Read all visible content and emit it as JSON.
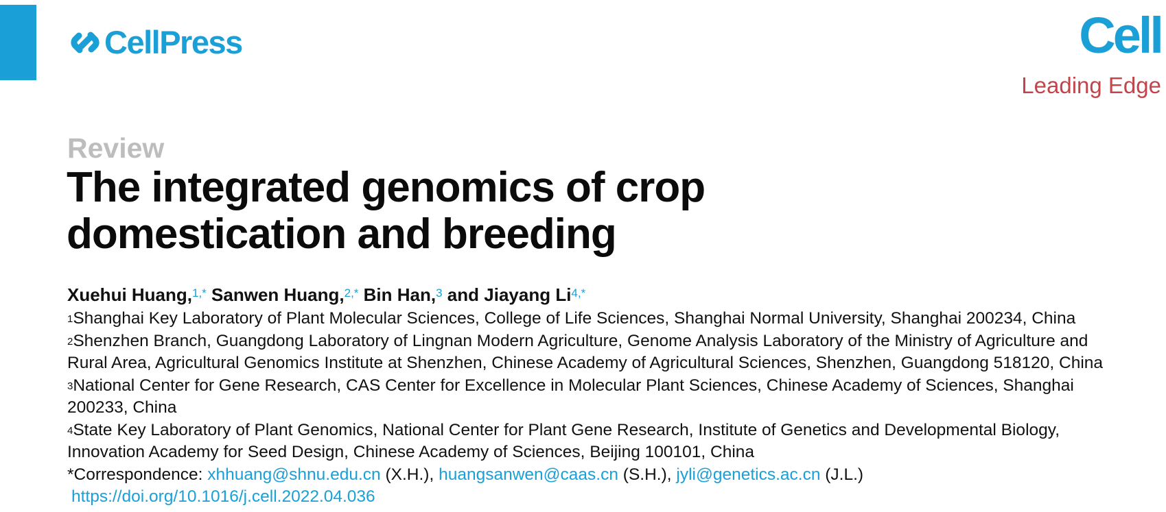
{
  "header": {
    "publisher": "CellPress",
    "journal": "Cell",
    "section": "Leading Edge",
    "colors": {
      "brand": "#1aa0d7",
      "section": "#c1454b",
      "article_type": "#bdbdbd"
    }
  },
  "article": {
    "type": "Review",
    "title_line1": "The integrated genomics of crop",
    "title_line2": "domestication and breeding"
  },
  "authors": [
    {
      "name": "Xuehui Huang,",
      "sup": "1,*"
    },
    {
      "name": "Sanwen Huang,",
      "sup": "2,*"
    },
    {
      "name": "Bin Han,",
      "sup": "3"
    },
    {
      "connector": "and",
      "name": "Jiayang Li",
      "sup": "4,*"
    }
  ],
  "affiliations": {
    "a1": {
      "num": "1",
      "text": "Shanghai Key Laboratory of Plant Molecular Sciences, College of Life Sciences, Shanghai Normal University, Shanghai 200234, China"
    },
    "a2": {
      "num": "2",
      "line1": "Shenzhen Branch, Guangdong Laboratory of Lingnan Modern Agriculture, Genome Analysis Laboratory of the Ministry of Agriculture and",
      "line2": "Rural Area, Agricultural Genomics Institute at Shenzhen, Chinese Academy of Agricultural Sciences, Shenzhen, Guangdong 518120, China"
    },
    "a3": {
      "num": "3",
      "line1": "National Center for Gene Research, CAS Center for Excellence in Molecular Plant Sciences, Chinese Academy of Sciences, Shanghai",
      "line2": "200233, China"
    },
    "a4": {
      "num": "4",
      "line1": "State Key Laboratory of Plant Genomics, National Center for Plant Gene Research, Institute of Genetics and Developmental Biology,",
      "line2": "Innovation Academy for Seed Design, Chinese Academy of Sciences, Beijing 100101, China"
    }
  },
  "correspondence": {
    "label": "*Correspondence:",
    "email1": "xhhuang@shnu.edu.cn",
    "initials1": "(X.H.),",
    "email2": "huangsanwen@caas.cn",
    "initials2": "(S.H.),",
    "email3": "jyli@genetics.ac.cn",
    "initials3": "(J.L.)"
  },
  "doi": "https://doi.org/10.1016/j.cell.2022.04.036"
}
